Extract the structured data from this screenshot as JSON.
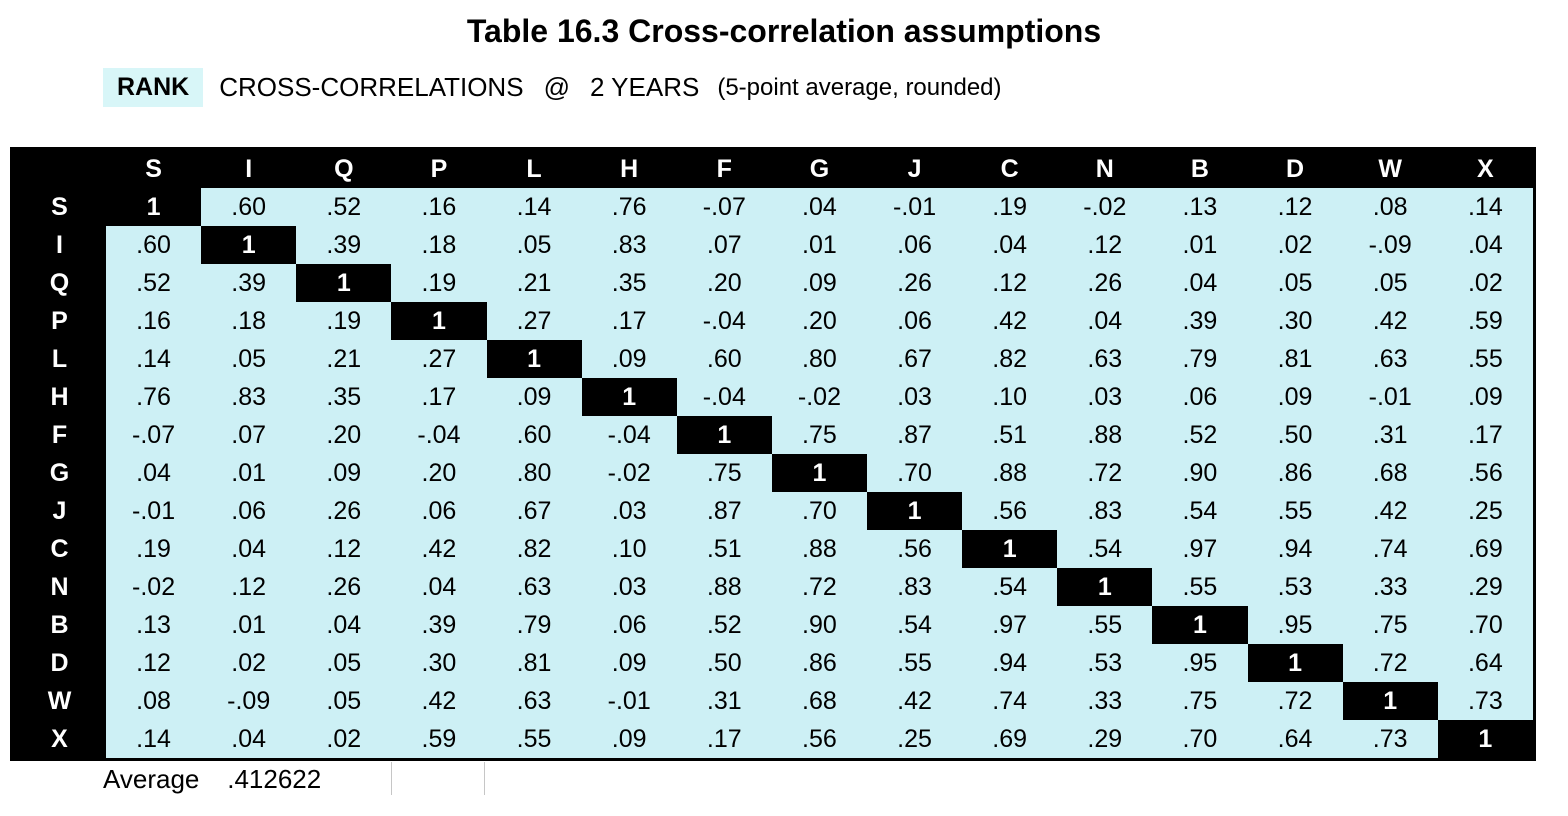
{
  "chart_data": {
    "type": "table",
    "title": "Table 16.3 Cross-correlation assumptions",
    "subtitle": {
      "highlight": "RANK",
      "label": "CROSS-CORRELATIONS",
      "at": "@",
      "horizon": "2 YEARS",
      "note": "(5-point average, rounded)"
    },
    "columns": [
      "S",
      "I",
      "Q",
      "P",
      "L",
      "H",
      "F",
      "G",
      "J",
      "C",
      "N",
      "B",
      "D",
      "W",
      "X"
    ],
    "rows": [
      {
        "label": "S",
        "values": [
          "1",
          ".60",
          ".52",
          ".16",
          ".14",
          ".76",
          "-.07",
          ".04",
          "-.01",
          ".19",
          "-.02",
          ".13",
          ".12",
          ".08",
          ".14"
        ]
      },
      {
        "label": "I",
        "values": [
          ".60",
          "1",
          ".39",
          ".18",
          ".05",
          ".83",
          ".07",
          ".01",
          ".06",
          ".04",
          ".12",
          ".01",
          ".02",
          "-.09",
          ".04"
        ]
      },
      {
        "label": "Q",
        "values": [
          ".52",
          ".39",
          "1",
          ".19",
          ".21",
          ".35",
          ".20",
          ".09",
          ".26",
          ".12",
          ".26",
          ".04",
          ".05",
          ".05",
          ".02"
        ]
      },
      {
        "label": "P",
        "values": [
          ".16",
          ".18",
          ".19",
          "1",
          ".27",
          ".17",
          "-.04",
          ".20",
          ".06",
          ".42",
          ".04",
          ".39",
          ".30",
          ".42",
          ".59"
        ]
      },
      {
        "label": "L",
        "values": [
          ".14",
          ".05",
          ".21",
          ".27",
          "1",
          ".09",
          ".60",
          ".80",
          ".67",
          ".82",
          ".63",
          ".79",
          ".81",
          ".63",
          ".55"
        ]
      },
      {
        "label": "H",
        "values": [
          ".76",
          ".83",
          ".35",
          ".17",
          ".09",
          "1",
          "-.04",
          "-.02",
          ".03",
          ".10",
          ".03",
          ".06",
          ".09",
          "-.01",
          ".09"
        ]
      },
      {
        "label": "F",
        "values": [
          "-.07",
          ".07",
          ".20",
          "-.04",
          ".60",
          "-.04",
          "1",
          ".75",
          ".87",
          ".51",
          ".88",
          ".52",
          ".50",
          ".31",
          ".17"
        ]
      },
      {
        "label": "G",
        "values": [
          ".04",
          ".01",
          ".09",
          ".20",
          ".80",
          "-.02",
          ".75",
          "1",
          ".70",
          ".88",
          ".72",
          ".90",
          ".86",
          ".68",
          ".56"
        ]
      },
      {
        "label": "J",
        "values": [
          "-.01",
          ".06",
          ".26",
          ".06",
          ".67",
          ".03",
          ".87",
          ".70",
          "1",
          ".56",
          ".83",
          ".54",
          ".55",
          ".42",
          ".25"
        ]
      },
      {
        "label": "C",
        "values": [
          ".19",
          ".04",
          ".12",
          ".42",
          ".82",
          ".10",
          ".51",
          ".88",
          ".56",
          "1",
          ".54",
          ".97",
          ".94",
          ".74",
          ".69"
        ]
      },
      {
        "label": "N",
        "values": [
          "-.02",
          ".12",
          ".26",
          ".04",
          ".63",
          ".03",
          ".88",
          ".72",
          ".83",
          ".54",
          "1",
          ".55",
          ".53",
          ".33",
          ".29"
        ]
      },
      {
        "label": "B",
        "values": [
          ".13",
          ".01",
          ".04",
          ".39",
          ".79",
          ".06",
          ".52",
          ".90",
          ".54",
          ".97",
          ".55",
          "1",
          ".95",
          ".75",
          ".70"
        ]
      },
      {
        "label": "D",
        "values": [
          ".12",
          ".02",
          ".05",
          ".30",
          ".81",
          ".09",
          ".50",
          ".86",
          ".55",
          ".94",
          ".53",
          ".95",
          "1",
          ".72",
          ".64"
        ]
      },
      {
        "label": "W",
        "values": [
          ".08",
          "-.09",
          ".05",
          ".42",
          ".63",
          "-.01",
          ".31",
          ".68",
          ".42",
          ".74",
          ".33",
          ".75",
          ".72",
          "1",
          ".73"
        ]
      },
      {
        "label": "X",
        "values": [
          ".14",
          ".04",
          ".02",
          ".59",
          ".55",
          ".09",
          ".17",
          ".56",
          ".25",
          ".69",
          ".29",
          ".70",
          ".64",
          ".73",
          "1"
        ]
      }
    ],
    "footer": {
      "average_label": "Average",
      "average_value": ".412622"
    },
    "colors": {
      "cell_background": "#cdf0f5",
      "highlight_background": "#d8f6f8",
      "header_background": "#000000",
      "header_text": "#ffffff"
    }
  }
}
